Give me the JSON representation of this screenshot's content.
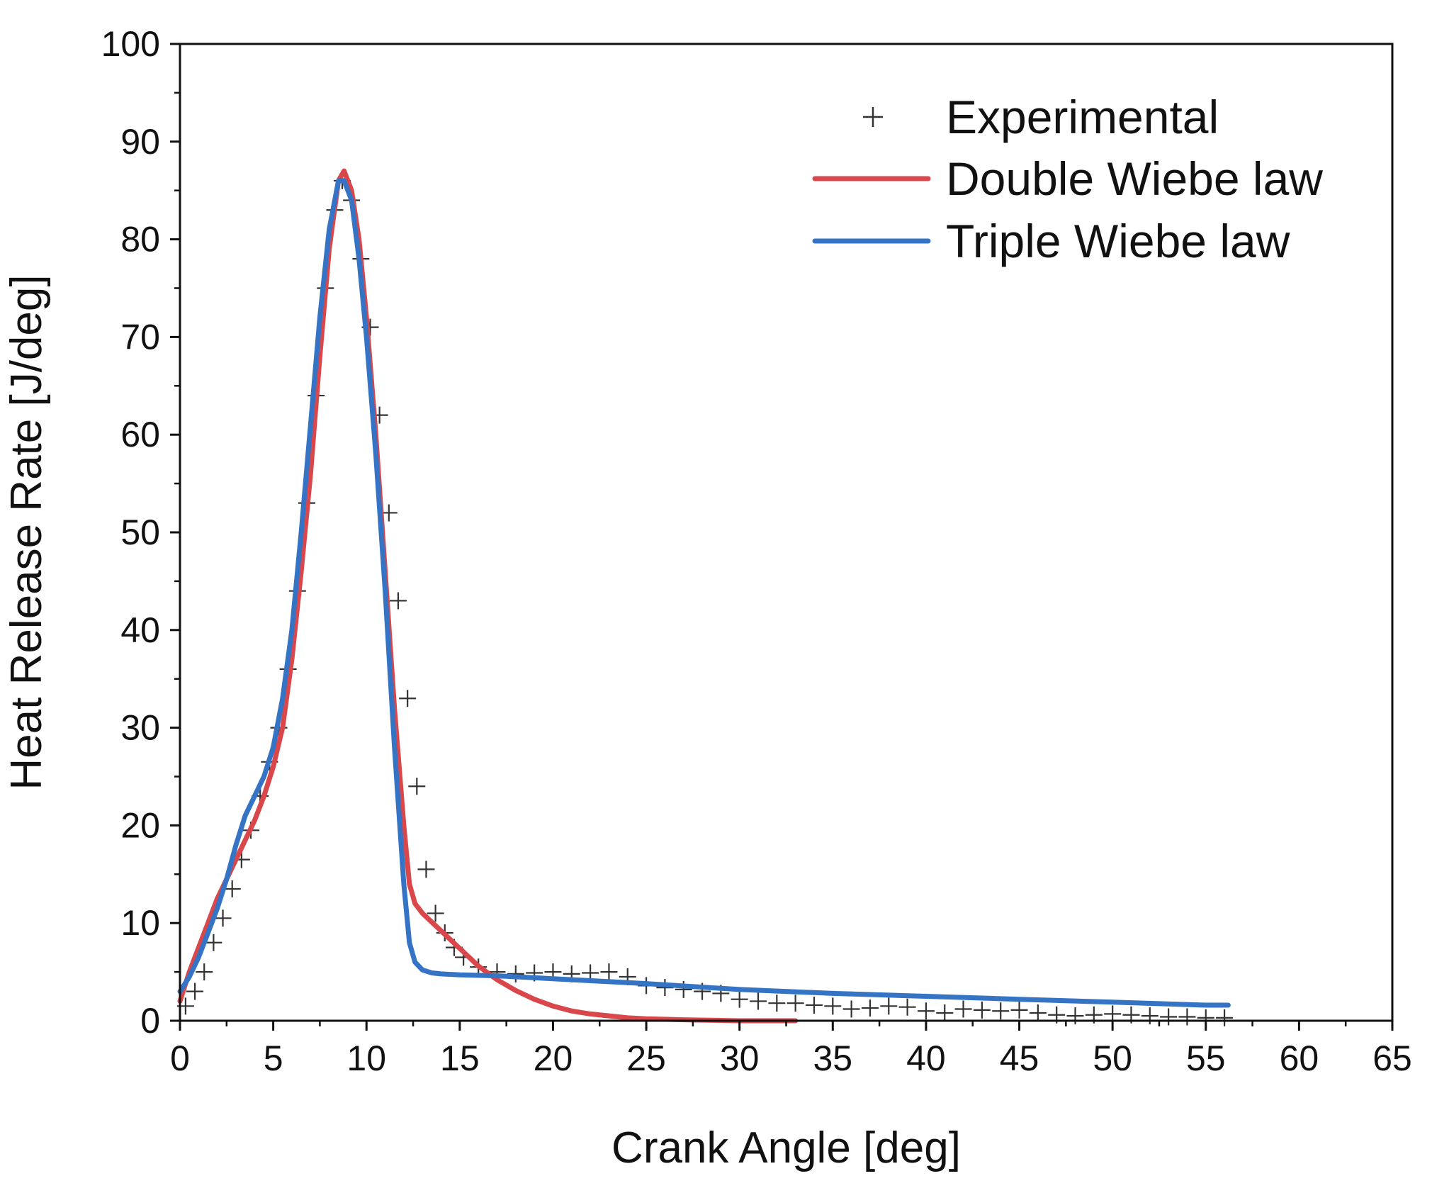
{
  "chart_data": {
    "type": "line",
    "title": "",
    "xlabel": "Crank Angle [deg]",
    "ylabel": "Heat Release Rate [J/deg]",
    "xlim": [
      0,
      65
    ],
    "ylim": [
      0,
      100
    ],
    "xticks": [
      0,
      5,
      10,
      15,
      20,
      25,
      30,
      35,
      40,
      45,
      50,
      55,
      60,
      65
    ],
    "yticks": [
      0,
      10,
      20,
      30,
      40,
      50,
      60,
      70,
      80,
      90,
      100
    ],
    "x_minor_step": 2.5,
    "y_minor_step": 5,
    "grid": false,
    "legend_position": "top-right",
    "series": [
      {
        "name": "Experimental",
        "style": "markers",
        "marker": "+",
        "color": "#333333",
        "x": [
          0.3,
          0.8,
          1.3,
          1.8,
          2.3,
          2.8,
          3.3,
          3.8,
          4.3,
          4.8,
          5.3,
          5.8,
          6.3,
          6.8,
          7.3,
          7.8,
          8.3,
          8.7,
          9.2,
          9.7,
          10.2,
          10.7,
          11.2,
          11.7,
          12.2,
          12.7,
          13.2,
          13.7,
          14.2,
          14.7,
          15.2,
          16,
          17,
          18,
          19,
          20,
          21,
          22,
          23,
          24,
          25,
          26,
          27,
          28,
          29,
          30,
          31,
          32,
          33,
          34,
          35,
          36,
          37,
          38,
          39,
          40,
          41,
          42,
          43,
          44,
          45,
          46,
          47,
          48,
          49,
          50,
          51,
          52,
          53,
          54,
          55,
          56
        ],
        "values": [
          1.5,
          3,
          5,
          8,
          10.5,
          13.5,
          16.5,
          19.5,
          23,
          26.5,
          30,
          36,
          44,
          53,
          64,
          75,
          83,
          86,
          84,
          78,
          71,
          62,
          52,
          43,
          33,
          24,
          15.5,
          11,
          9,
          7.5,
          6.5,
          5.5,
          5,
          4.8,
          4.9,
          5,
          4.8,
          4.9,
          5,
          4.5,
          3.6,
          3.4,
          3.2,
          3,
          2.8,
          2.2,
          2,
          1.8,
          1.8,
          1.6,
          1.5,
          1.2,
          1.3,
          1.5,
          1.4,
          1,
          0.8,
          1.2,
          1.1,
          1,
          1.1,
          0.8,
          0.6,
          0.5,
          0.6,
          0.7,
          0.6,
          0.5,
          0.4,
          0.4,
          0.3,
          0.3
        ]
      },
      {
        "name": "Double Wiebe law",
        "style": "line",
        "color": "#d9474b",
        "x": [
          0,
          0.5,
          1,
          1.5,
          2,
          2.5,
          3,
          3.5,
          4,
          4.5,
          5,
          5.5,
          6,
          6.5,
          7,
          7.5,
          8,
          8.5,
          8.8,
          9.2,
          9.6,
          10,
          10.5,
          11,
          11.5,
          12,
          12.3,
          12.6,
          13,
          14,
          15,
          16,
          17,
          18,
          19,
          20,
          21,
          22,
          23,
          24,
          25,
          27,
          30,
          33
        ],
        "values": [
          2,
          5,
          7.5,
          10,
          12.5,
          14.5,
          16.5,
          18.5,
          20.5,
          23,
          26,
          30,
          37,
          46,
          56,
          68,
          79,
          86,
          87,
          85,
          80,
          72,
          60,
          46,
          32,
          20,
          14,
          12,
          11,
          9.2,
          7.4,
          5.6,
          4.2,
          3.1,
          2.2,
          1.5,
          1,
          0.7,
          0.5,
          0.3,
          0.2,
          0.1,
          0,
          0
        ]
      },
      {
        "name": "Triple Wiebe law",
        "style": "line",
        "color": "#3574c4",
        "x": [
          0,
          0.5,
          1,
          1.5,
          2,
          2.5,
          3,
          3.5,
          4,
          4.5,
          5,
          5.5,
          6,
          6.5,
          7,
          7.5,
          8,
          8.5,
          8.8,
          9.2,
          9.6,
          10,
          10.5,
          11,
          11.5,
          12,
          12.3,
          12.6,
          13,
          13.5,
          14,
          15,
          17,
          20,
          25,
          30,
          35,
          40,
          45,
          50,
          55,
          56.2
        ],
        "values": [
          3,
          4.5,
          6.5,
          9,
          11.5,
          14.5,
          18,
          21,
          23,
          25,
          28,
          33,
          40,
          50,
          61,
          72,
          81,
          86,
          86,
          84,
          78,
          70,
          58,
          44,
          28,
          14,
          8,
          6,
          5.2,
          4.9,
          4.8,
          4.7,
          4.6,
          4.3,
          3.8,
          3.2,
          2.8,
          2.5,
          2.2,
          1.9,
          1.6,
          1.6
        ]
      }
    ]
  }
}
